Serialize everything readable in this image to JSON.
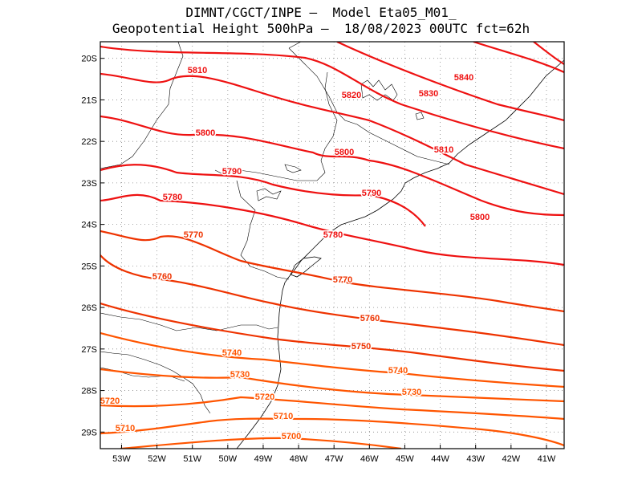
{
  "title": {
    "line1": "DIMNT/CGCT/INPE –  Model Eta05_M01_",
    "line2": "Geopotential Height 500hPa –  18/08/2023 00UTC fct=62h"
  },
  "map_data": {
    "type": "contour-map",
    "variable": "Geopotential Height 500hPa",
    "lon_range": [
      -53.6,
      -40.5
    ],
    "lat_range": [
      -29.4,
      -19.6
    ],
    "x_ticks": [
      "53W",
      "52W",
      "51W",
      "50W",
      "49W",
      "48W",
      "47W",
      "46W",
      "45W",
      "44W",
      "43W",
      "42W",
      "41W"
    ],
    "y_ticks": [
      "20S",
      "21S",
      "22S",
      "23S",
      "24S",
      "25S",
      "26S",
      "27S",
      "28S",
      "29S"
    ],
    "grid": true,
    "colors": {
      "high": "#ee1111",
      "mid": "#ee3300",
      "low": "#ff5500",
      "coast": "#000000",
      "grid": "#888888"
    },
    "contour_labels": [
      {
        "value": "5840"
      },
      {
        "value": "5830"
      },
      {
        "value": "5820"
      },
      {
        "value": "5810"
      },
      {
        "value": "5810"
      },
      {
        "value": "5800"
      },
      {
        "value": "5800"
      },
      {
        "value": "5800"
      },
      {
        "value": "5790"
      },
      {
        "value": "5790"
      },
      {
        "value": "5780"
      },
      {
        "value": "5780"
      },
      {
        "value": "5770"
      },
      {
        "value": "5770"
      },
      {
        "value": "5760"
      },
      {
        "value": "5760"
      },
      {
        "value": "5750"
      },
      {
        "value": "5740"
      },
      {
        "value": "5740"
      },
      {
        "value": "5730"
      },
      {
        "value": "5730"
      },
      {
        "value": "5720"
      },
      {
        "value": "5720"
      },
      {
        "value": "5710"
      },
      {
        "value": "5710"
      },
      {
        "value": "5700"
      }
    ]
  }
}
